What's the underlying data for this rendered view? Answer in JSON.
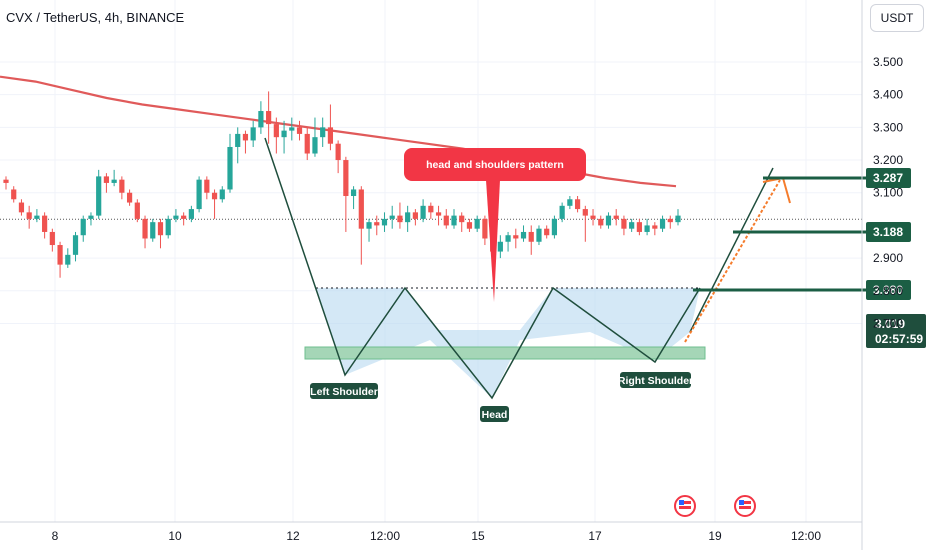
{
  "header": {
    "title": "CVX / TetherUS, 4h, BINANCE",
    "currency_button": "USDT"
  },
  "chart_data": {
    "type": "candlestick",
    "pair": "CVX / TetherUS",
    "interval": "4h",
    "exchange": "BINANCE",
    "y_ticks": [
      "3.500",
      "3.400",
      "3.300",
      "3.200",
      "3.100",
      "2.900",
      "2.800",
      "2.700"
    ],
    "x_ticks": [
      "8",
      "10",
      "12",
      "12:00",
      "15",
      "17",
      "19",
      "12:00"
    ],
    "ylim": [
      2.66,
      3.62
    ],
    "candles": [
      [
        3.14,
        3.13,
        3.15,
        3.11
      ],
      [
        3.11,
        3.08,
        3.12,
        3.07
      ],
      [
        3.07,
        3.04,
        3.08,
        3.03
      ],
      [
        3.04,
        3.02,
        3.06,
        2.99
      ],
      [
        3.02,
        3.03,
        3.05,
        3.01
      ],
      [
        3.03,
        2.98,
        3.04,
        2.96
      ],
      [
        2.98,
        2.94,
        2.99,
        2.92
      ],
      [
        2.94,
        2.88,
        2.95,
        2.84
      ],
      [
        2.88,
        2.91,
        2.93,
        2.87
      ],
      [
        2.91,
        2.97,
        2.98,
        2.89
      ],
      [
        2.97,
        3.02,
        3.03,
        2.95
      ],
      [
        3.02,
        3.03,
        3.04,
        3.0
      ],
      [
        3.03,
        3.15,
        3.17,
        3.02
      ],
      [
        3.15,
        3.13,
        3.16,
        3.1
      ],
      [
        3.13,
        3.14,
        3.17,
        3.12
      ],
      [
        3.14,
        3.1,
        3.15,
        3.08
      ],
      [
        3.1,
        3.07,
        3.11,
        3.06
      ],
      [
        3.07,
        3.02,
        3.08,
        3.01
      ],
      [
        3.02,
        2.96,
        3.03,
        2.93
      ],
      [
        2.96,
        3.01,
        3.02,
        2.95
      ],
      [
        3.01,
        2.97,
        3.02,
        2.93
      ],
      [
        2.97,
        3.02,
        3.03,
        2.96
      ],
      [
        3.02,
        3.03,
        3.05,
        3.01
      ],
      [
        3.03,
        3.02,
        3.04,
        3.0
      ],
      [
        3.02,
        3.05,
        3.06,
        3.01
      ],
      [
        3.05,
        3.14,
        3.15,
        3.04
      ],
      [
        3.14,
        3.1,
        3.15,
        3.08
      ],
      [
        3.1,
        3.08,
        3.11,
        3.02
      ],
      [
        3.08,
        3.11,
        3.12,
        3.07
      ],
      [
        3.11,
        3.24,
        3.28,
        3.1
      ],
      [
        3.24,
        3.28,
        3.3,
        3.19
      ],
      [
        3.28,
        3.26,
        3.29,
        3.22
      ],
      [
        3.26,
        3.3,
        3.32,
        3.24
      ],
      [
        3.3,
        3.35,
        3.38,
        3.28
      ],
      [
        3.35,
        3.31,
        3.41,
        3.25
      ],
      [
        3.31,
        3.27,
        3.33,
        3.22
      ],
      [
        3.27,
        3.29,
        3.32,
        3.22
      ],
      [
        3.29,
        3.3,
        3.33,
        3.26
      ],
      [
        3.3,
        3.28,
        3.32,
        3.26
      ],
      [
        3.28,
        3.22,
        3.3,
        3.2
      ],
      [
        3.22,
        3.27,
        3.33,
        3.21
      ],
      [
        3.27,
        3.3,
        3.33,
        3.24
      ],
      [
        3.3,
        3.25,
        3.37,
        3.23
      ],
      [
        3.25,
        3.2,
        3.26,
        3.16
      ],
      [
        3.2,
        3.09,
        3.21,
        2.98
      ],
      [
        3.09,
        3.11,
        3.12,
        3.05
      ],
      [
        3.11,
        2.99,
        3.12,
        2.88
      ],
      [
        2.99,
        3.01,
        3.02,
        2.95
      ],
      [
        3.01,
        3.0,
        3.03,
        2.97
      ],
      [
        3.0,
        3.02,
        3.04,
        2.98
      ],
      [
        3.02,
        3.03,
        3.06,
        2.99
      ],
      [
        3.03,
        3.01,
        3.07,
        2.99
      ],
      [
        3.01,
        3.04,
        3.06,
        2.98
      ],
      [
        3.04,
        3.02,
        3.05,
        3.0
      ],
      [
        3.02,
        3.06,
        3.08,
        3.01
      ],
      [
        3.06,
        3.04,
        3.07,
        3.02
      ],
      [
        3.04,
        3.03,
        3.06,
        3.0
      ],
      [
        3.03,
        3.0,
        3.05,
        2.99
      ],
      [
        3.0,
        3.03,
        3.05,
        2.99
      ],
      [
        3.03,
        3.01,
        3.04,
        2.98
      ],
      [
        3.01,
        2.99,
        3.02,
        2.98
      ],
      [
        2.99,
        3.02,
        3.03,
        2.98
      ],
      [
        3.02,
        2.96,
        3.03,
        2.94
      ],
      [
        2.96,
        2.92,
        2.97,
        2.9
      ],
      [
        2.92,
        2.95,
        2.97,
        2.9
      ],
      [
        2.95,
        2.97,
        2.98,
        2.92
      ],
      [
        2.97,
        2.96,
        2.99,
        2.93
      ],
      [
        2.96,
        2.98,
        3.0,
        2.95
      ],
      [
        2.98,
        2.95,
        3.0,
        2.91
      ],
      [
        2.95,
        2.99,
        3.0,
        2.94
      ],
      [
        2.99,
        2.97,
        3.0,
        2.96
      ],
      [
        2.97,
        3.02,
        3.03,
        2.96
      ],
      [
        3.02,
        3.06,
        3.07,
        3.01
      ],
      [
        3.06,
        3.08,
        3.09,
        3.05
      ],
      [
        3.08,
        3.05,
        3.09,
        3.04
      ],
      [
        3.05,
        3.03,
        3.06,
        2.95
      ],
      [
        3.03,
        3.02,
        3.05,
        3.0
      ],
      [
        3.02,
        3.0,
        3.03,
        2.99
      ],
      [
        3.0,
        3.03,
        3.04,
        2.99
      ],
      [
        3.03,
        3.02,
        3.05,
        3.0
      ],
      [
        3.02,
        2.99,
        3.03,
        2.97
      ],
      [
        2.99,
        3.01,
        3.02,
        2.98
      ],
      [
        3.01,
        2.98,
        3.02,
        2.97
      ],
      [
        2.98,
        3.0,
        3.02,
        2.97
      ],
      [
        3.0,
        2.99,
        3.01,
        2.97
      ],
      [
        2.99,
        3.02,
        3.03,
        2.98
      ],
      [
        3.02,
        3.01,
        3.03,
        2.99
      ],
      [
        3.01,
        3.03,
        3.05,
        3.0
      ]
    ],
    "moving_average": [
      3.455,
      3.44,
      3.415,
      3.39,
      3.37,
      3.355,
      3.34,
      3.325,
      3.31,
      3.295,
      3.28,
      3.265,
      3.25,
      3.235,
      3.215,
      3.19,
      3.165,
      3.145,
      3.13,
      3.12
    ],
    "current_price": "3.019",
    "countdown": "02:57:59",
    "levels": [
      "3.287",
      "3.188",
      "3.080"
    ],
    "annotations": {
      "banner": "head and shoulders pattern",
      "left_shoulder": "Left Shoulder",
      "head": "Head",
      "right_shoulder": "Right Shoulder"
    },
    "colors": {
      "up": "#26a69a",
      "down": "#ef5350",
      "ma": "#e05a5a",
      "level": "#1b5e44",
      "pattern": "#1f4e3d",
      "neckline_zone": "#b8d8f0",
      "support_zone": "#a5d6b7",
      "projection": "#f57c2c",
      "banner": "#f23645",
      "label_bg": "#1f4e3d"
    }
  }
}
